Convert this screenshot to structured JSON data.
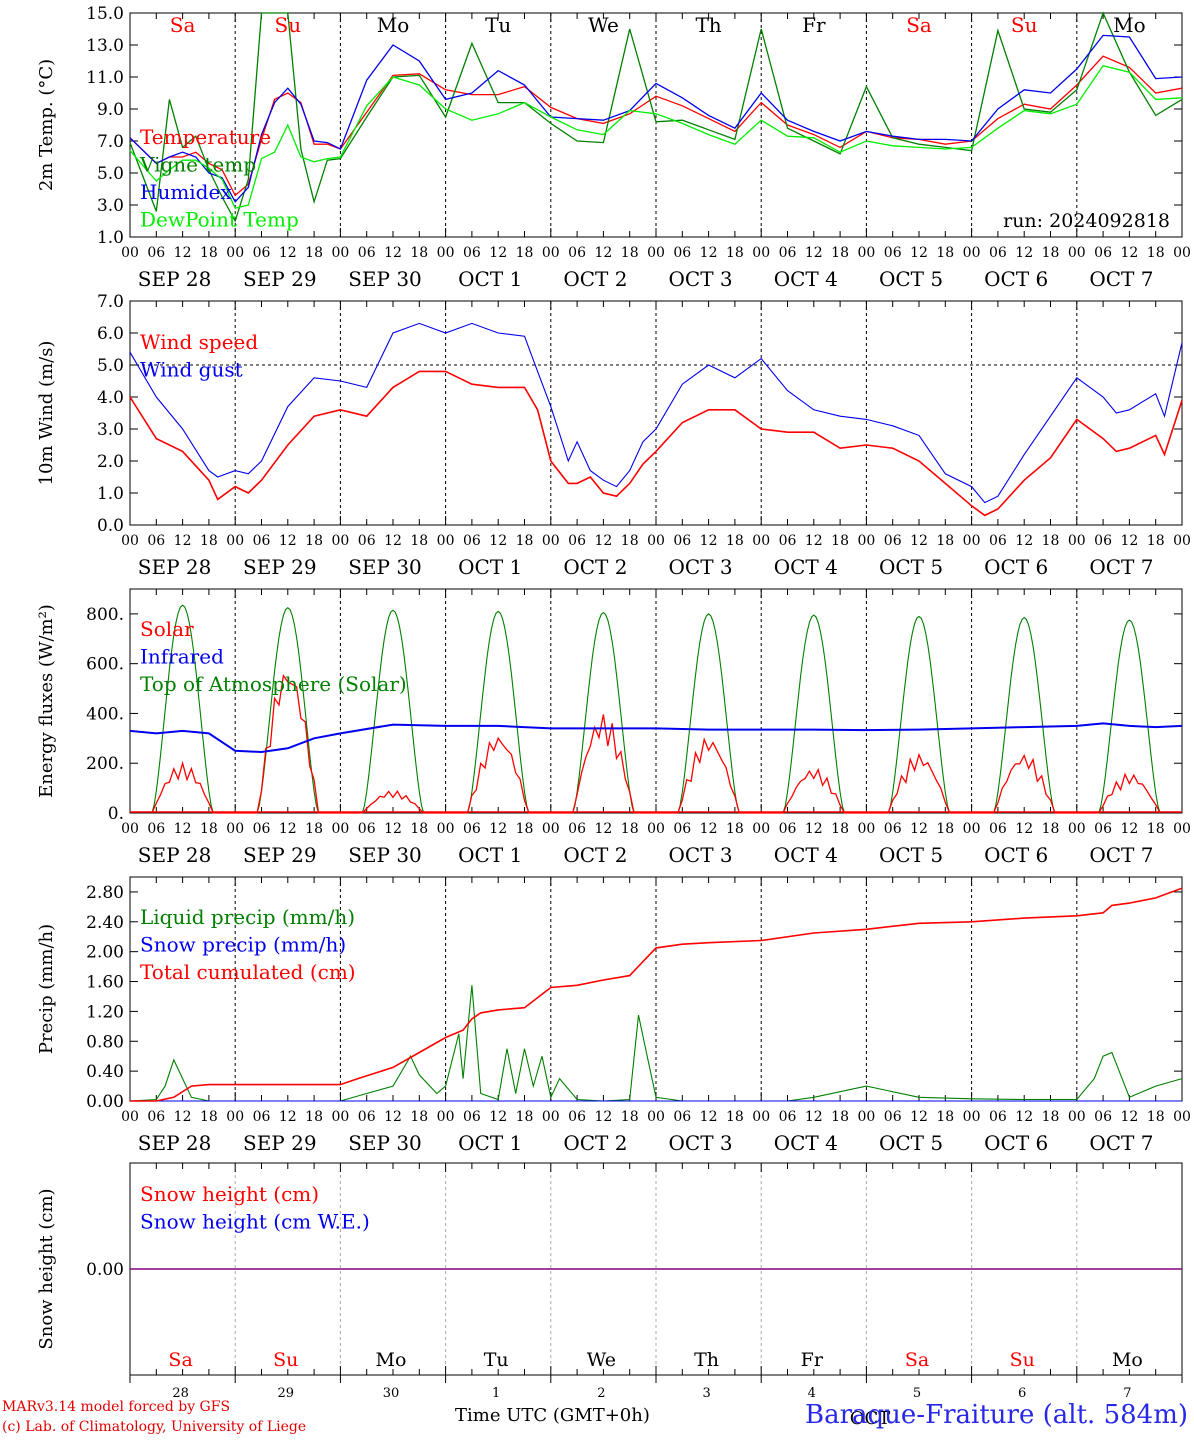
{
  "run_label": "run: 2024092818",
  "day_names": [
    "Sa",
    "Su",
    "Mo",
    "Tu",
    "We",
    "Th",
    "Fr",
    "Sa",
    "Su",
    "Mo"
  ],
  "weekend_days": [
    0,
    1,
    7,
    8
  ],
  "date_labels": [
    "SEP 28",
    "SEP 29",
    "SEP 30",
    "OCT  1",
    "OCT  2",
    "OCT  3",
    "OCT  4",
    "OCT  5",
    "OCT  6",
    "OCT  7"
  ],
  "bottom_day_numbers": [
    "28",
    "29",
    "30",
    "1",
    "2",
    "3",
    "4",
    "5",
    "6",
    "7"
  ],
  "bottom_month": "OCT",
  "hour_ticks": [
    "00",
    "06",
    "12",
    "18"
  ],
  "footer": {
    "model": "MARv3.14 model forced by GFS",
    "copyright": "(c) Lab. of Climatology, University of Liege",
    "time_label": "Time UTC (GMT+0h)",
    "station": "Baraque-Fraiture (alt. 584m)"
  },
  "colors": {
    "red": "#ff0000",
    "green": "#008000",
    "blue": "#0000ee",
    "light_green": "#00ee00",
    "purple": "#800080",
    "station_blue": "#2828e8"
  },
  "chart_data": [
    {
      "type": "line",
      "ylabel": "2m Temp. (°C)",
      "ylim": [
        1,
        15
      ],
      "yticks": [
        "15.0",
        "13.0",
        "11.0",
        "9.0",
        "7.0",
        "5.0",
        "3.0",
        "1.0"
      ],
      "ytick_values": [
        15,
        13,
        11,
        9,
        7,
        5,
        3,
        1
      ],
      "x_unit": "hours since 2024-09-28 00 UTC",
      "xlim": [
        0,
        240
      ],
      "legend": [
        "Temperature",
        "Vigne temp",
        "Humidex",
        "DewPoint Temp"
      ],
      "series": [
        {
          "name": "Temperature",
          "color": "red",
          "x": [
            0,
            6,
            9,
            12,
            15,
            18,
            21,
            24,
            27,
            30,
            33,
            36,
            39,
            42,
            45,
            48,
            54,
            60,
            66,
            72,
            78,
            84,
            90,
            96,
            102,
            108,
            114,
            120,
            126,
            132,
            138,
            144,
            150,
            156,
            162,
            168,
            174,
            180,
            186,
            192,
            198,
            204,
            210,
            216,
            222,
            228,
            234,
            240
          ],
          "y": [
            7.2,
            5.6,
            6.0,
            6.0,
            6.3,
            5.6,
            5.2,
            3.6,
            4.3,
            7.1,
            9.6,
            10.0,
            9.4,
            6.8,
            6.8,
            6.5,
            8.8,
            11.1,
            11.2,
            10.2,
            9.9,
            9.9,
            10.4,
            9.1,
            8.4,
            8.1,
            8.7,
            9.8,
            9.2,
            8.4,
            7.6,
            9.4,
            8.0,
            7.4,
            6.6,
            7.6,
            7.2,
            7.1,
            6.8,
            7.0,
            8.4,
            9.3,
            9.0,
            10.5,
            12.3,
            11.6,
            10.0,
            10.3
          ]
        },
        {
          "name": "Vigne temp",
          "color": "green",
          "x": [
            0,
            6,
            9,
            12,
            15,
            18,
            21,
            24,
            27,
            30,
            33,
            36,
            39,
            42,
            45,
            48,
            54,
            60,
            66,
            72,
            78,
            84,
            90,
            96,
            102,
            108,
            114,
            120,
            126,
            132,
            138,
            144,
            150,
            156,
            162,
            168,
            174,
            180,
            186,
            192,
            198,
            204,
            210,
            216,
            222,
            228,
            234,
            240
          ],
          "y": [
            6.9,
            2.6,
            9.6,
            6.6,
            7.3,
            5.2,
            3.5,
            2.0,
            4.6,
            15.0,
            15.0,
            15.0,
            6.5,
            3.2,
            5.8,
            5.9,
            8.5,
            11.0,
            11.1,
            8.5,
            13.1,
            9.4,
            9.4,
            8.1,
            7.0,
            6.9,
            14.0,
            8.2,
            8.3,
            7.7,
            7.1,
            14.0,
            7.8,
            7.0,
            6.2,
            10.4,
            7.2,
            6.8,
            6.6,
            6.4,
            13.9,
            9.0,
            8.8,
            10.2,
            15.0,
            11.3,
            8.6,
            9.6
          ]
        },
        {
          "name": "Humidex",
          "color": "blue",
          "x": [
            0,
            6,
            9,
            12,
            15,
            18,
            21,
            24,
            27,
            30,
            33,
            36,
            39,
            42,
            45,
            48,
            54,
            60,
            66,
            72,
            78,
            84,
            90,
            96,
            102,
            108,
            114,
            120,
            126,
            132,
            138,
            144,
            150,
            156,
            162,
            168,
            174,
            180,
            186,
            192,
            198,
            204,
            210,
            216,
            222,
            228,
            234,
            240
          ],
          "y": [
            7.2,
            5.6,
            6.0,
            6.3,
            6.0,
            5.0,
            4.7,
            3.2,
            4.1,
            7.4,
            9.4,
            10.3,
            9.3,
            7.0,
            6.9,
            6.5,
            10.8,
            13.0,
            12.0,
            9.6,
            10.0,
            11.4,
            10.5,
            8.5,
            8.4,
            8.3,
            8.9,
            10.6,
            9.7,
            8.6,
            7.8,
            10.0,
            8.3,
            7.6,
            7.0,
            7.6,
            7.3,
            7.1,
            7.1,
            7.0,
            9.0,
            10.2,
            10.0,
            11.5,
            13.6,
            13.5,
            10.9,
            11.0
          ]
        },
        {
          "name": "DewPoint Temp",
          "color": "light_green",
          "x": [
            0,
            6,
            9,
            12,
            15,
            18,
            21,
            24,
            27,
            30,
            33,
            36,
            39,
            42,
            45,
            48,
            54,
            60,
            66,
            72,
            78,
            84,
            90,
            96,
            102,
            108,
            114,
            120,
            126,
            132,
            138,
            144,
            150,
            156,
            162,
            168,
            174,
            180,
            186,
            192,
            198,
            204,
            210,
            216,
            222,
            228,
            234,
            240
          ],
          "y": [
            6.4,
            4.5,
            5.2,
            5.8,
            5.8,
            5.3,
            4.6,
            2.8,
            3.0,
            5.9,
            6.3,
            8.0,
            6.0,
            5.7,
            5.9,
            6.0,
            9.2,
            11.0,
            10.5,
            9.0,
            8.3,
            8.7,
            9.4,
            8.5,
            7.7,
            7.4,
            8.9,
            8.7,
            8.1,
            7.4,
            6.8,
            8.3,
            7.3,
            7.2,
            6.3,
            7.0,
            6.7,
            6.6,
            6.5,
            6.6,
            7.8,
            8.9,
            8.7,
            9.3,
            11.7,
            11.3,
            9.6,
            9.7
          ]
        }
      ]
    },
    {
      "type": "line",
      "ylabel": "10m Wind (m/s)",
      "ylim": [
        0,
        7
      ],
      "yticks": [
        "7.0",
        "6.0",
        "5.0",
        "4.0",
        "3.0",
        "2.0",
        "1.0",
        "0.0"
      ],
      "ytick_values": [
        7,
        6,
        5,
        4,
        3,
        2,
        1,
        0
      ],
      "xlim": [
        0,
        240
      ],
      "reference_line": 5.0,
      "legend": [
        "Wind speed",
        "Wind gust"
      ],
      "series": [
        {
          "name": "Wind speed",
          "color": "red",
          "x": [
            0,
            6,
            12,
            18,
            20,
            24,
            27,
            30,
            36,
            42,
            48,
            54,
            60,
            66,
            72,
            78,
            84,
            90,
            93,
            96,
            100,
            102,
            105,
            108,
            111,
            114,
            117,
            120,
            126,
            132,
            138,
            144,
            150,
            156,
            162,
            168,
            174,
            180,
            186,
            192,
            195,
            198,
            204,
            210,
            216,
            222,
            225,
            228,
            234,
            236,
            240
          ],
          "y": [
            4.0,
            2.7,
            2.3,
            1.4,
            0.8,
            1.2,
            1.0,
            1.4,
            2.5,
            3.4,
            3.6,
            3.4,
            4.3,
            4.8,
            4.8,
            4.4,
            4.3,
            4.3,
            3.6,
            2.0,
            1.3,
            1.3,
            1.5,
            1.0,
            0.9,
            1.3,
            1.9,
            2.3,
            3.2,
            3.6,
            3.6,
            3.0,
            2.9,
            2.9,
            2.4,
            2.5,
            2.4,
            2.0,
            1.3,
            0.6,
            0.3,
            0.5,
            1.4,
            2.1,
            3.3,
            2.7,
            2.3,
            2.4,
            2.8,
            2.2,
            3.9
          ]
        },
        {
          "name": "Wind gust",
          "color": "blue",
          "x": [
            0,
            6,
            12,
            18,
            20,
            24,
            27,
            30,
            36,
            42,
            48,
            54,
            60,
            66,
            72,
            78,
            84,
            90,
            93,
            96,
            100,
            102,
            105,
            108,
            111,
            114,
            117,
            120,
            126,
            132,
            138,
            144,
            150,
            156,
            162,
            168,
            174,
            180,
            186,
            192,
            195,
            198,
            204,
            210,
            216,
            222,
            225,
            228,
            234,
            236,
            240
          ],
          "y": [
            5.4,
            4.0,
            3.0,
            1.7,
            1.5,
            1.7,
            1.6,
            2.0,
            3.7,
            4.6,
            4.5,
            4.3,
            6.0,
            6.3,
            6.0,
            6.3,
            6.0,
            5.9,
            4.8,
            3.7,
            2.0,
            2.6,
            1.7,
            1.4,
            1.2,
            1.7,
            2.6,
            3.0,
            4.4,
            5.0,
            4.6,
            5.2,
            4.2,
            3.6,
            3.4,
            3.3,
            3.1,
            2.8,
            1.6,
            1.2,
            0.7,
            0.9,
            2.2,
            3.4,
            4.6,
            4.0,
            3.5,
            3.6,
            4.1,
            3.4,
            5.7
          ]
        }
      ]
    },
    {
      "type": "line",
      "ylabel": "Energy fluxes (W/m²)",
      "ylim": [
        0,
        900
      ],
      "yticks": [
        "800.",
        "600.",
        "400.",
        "200.",
        "0."
      ],
      "ytick_values": [
        800,
        600,
        400,
        200,
        0
      ],
      "xlim": [
        0,
        240
      ],
      "legend": [
        "Solar",
        "Infrared",
        "Top of Atmosphere (Solar)"
      ],
      "toa_peaks": [
        835,
        825,
        815,
        810,
        805,
        800,
        795,
        790,
        785,
        775
      ],
      "solar_noon_peaks": [
        200,
        600,
        90,
        320,
        400,
        310,
        180,
        240,
        240,
        160
      ],
      "infrared": {
        "x": [
          0,
          6,
          12,
          18,
          24,
          30,
          36,
          42,
          48,
          60,
          72,
          84,
          96,
          108,
          120,
          132,
          144,
          156,
          168,
          180,
          192,
          204,
          216,
          222,
          228,
          234,
          240
        ],
        "y": [
          330,
          320,
          330,
          320,
          250,
          245,
          260,
          300,
          320,
          355,
          350,
          350,
          340,
          340,
          340,
          335,
          335,
          335,
          333,
          335,
          340,
          345,
          350,
          360,
          350,
          345,
          350
        ]
      }
    },
    {
      "type": "line",
      "ylabel": "Precip (mm/h)",
      "ylim": [
        0,
        3.0
      ],
      "yticks": [
        "2.80",
        "2.40",
        "2.00",
        "1.60",
        "1.20",
        "0.80",
        "0.40",
        "0.00"
      ],
      "ytick_values": [
        2.8,
        2.4,
        2.0,
        1.6,
        1.2,
        0.8,
        0.4,
        0.0
      ],
      "xlim": [
        0,
        240
      ],
      "legend": [
        "Liquid precip (mm/h)",
        "Snow precip (mm/h)",
        "Total cumulated (cm)"
      ],
      "series": [
        {
          "name": "Liquid precip (mm/h)",
          "color": "green",
          "x": [
            0,
            6,
            8,
            10,
            12,
            14,
            18,
            24,
            30,
            36,
            42,
            48,
            54,
            60,
            64,
            66,
            70,
            72,
            75,
            76,
            78,
            80,
            84,
            86,
            88,
            90,
            92,
            94,
            96,
            98,
            102,
            108,
            114,
            116,
            118,
            120,
            126,
            132,
            138,
            144,
            150,
            156,
            168,
            180,
            192,
            204,
            216,
            220,
            222,
            224,
            228,
            234,
            240
          ],
          "y": [
            0,
            0.02,
            0.2,
            0.55,
            0.3,
            0.05,
            0,
            0,
            0,
            0,
            0,
            0,
            0.1,
            0.2,
            0.6,
            0.35,
            0.1,
            0.2,
            0.9,
            0.3,
            1.55,
            0.1,
            0.02,
            0.7,
            0.1,
            0.7,
            0.2,
            0.6,
            0.05,
            0.3,
            0.02,
            0,
            0.02,
            1.15,
            0.6,
            0.05,
            0,
            0,
            0,
            0,
            0,
            0.05,
            0.2,
            0.05,
            0.03,
            0.02,
            0.02,
            0.3,
            0.6,
            0.65,
            0.05,
            0.2,
            0.3
          ]
        },
        {
          "name": "Snow precip (mm/h)",
          "color": "blue",
          "x": [
            0,
            240
          ],
          "y": [
            0,
            0
          ]
        },
        {
          "name": "Total cumulated (cm)",
          "color": "red",
          "x": [
            0,
            6,
            10,
            14,
            18,
            24,
            36,
            48,
            52,
            60,
            66,
            72,
            76,
            78,
            80,
            84,
            90,
            96,
            102,
            108,
            114,
            120,
            126,
            132,
            144,
            156,
            168,
            180,
            192,
            204,
            216,
            222,
            224,
            228,
            234,
            240
          ],
          "y": [
            0,
            0,
            0.05,
            0.2,
            0.22,
            0.22,
            0.22,
            0.22,
            0.3,
            0.45,
            0.65,
            0.85,
            0.95,
            1.1,
            1.18,
            1.22,
            1.25,
            1.52,
            1.55,
            1.62,
            1.68,
            2.05,
            2.1,
            2.12,
            2.15,
            2.25,
            2.3,
            2.38,
            2.4,
            2.45,
            2.48,
            2.52,
            2.62,
            2.65,
            2.72,
            2.85
          ]
        }
      ]
    },
    {
      "type": "line",
      "ylabel": "Snow height (cm)",
      "ylim": [
        -1,
        1
      ],
      "yticks": [
        "0.00"
      ],
      "ytick_values": [
        0
      ],
      "xlim": [
        0,
        240
      ],
      "legend": [
        "Snow height (cm)",
        "Snow height (cm W.E.)"
      ],
      "series": [
        {
          "name": "Snow height (cm)",
          "color": "red",
          "x": [
            0,
            240
          ],
          "y": [
            0,
            0
          ]
        },
        {
          "name": "Snow height (cm W.E.)",
          "color": "blue",
          "x": [
            0,
            240
          ],
          "y": [
            0,
            0
          ]
        }
      ]
    }
  ]
}
